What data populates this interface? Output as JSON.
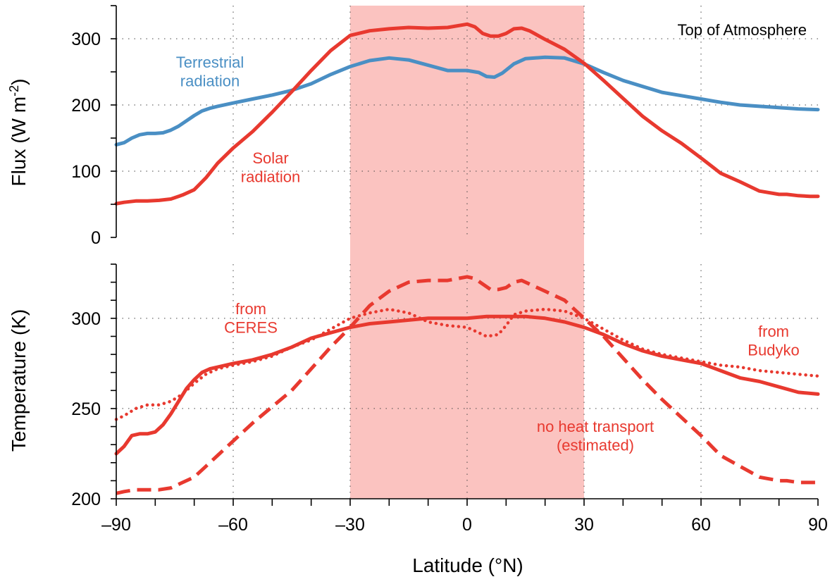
{
  "chart_data": [
    {
      "type": "line",
      "panel": "top",
      "annotation": "Top of Atmosphere",
      "ylabel_main": "Flux (W m",
      "ylabel_sup": "-2",
      "ylabel_close": ")",
      "xlim": [
        -90,
        90
      ],
      "ylim": [
        0,
        350
      ],
      "yticks": [
        0,
        100,
        200,
        300
      ],
      "grid": true,
      "shaded_band": [
        -30,
        30
      ],
      "colors": {
        "terrestrial": "#4a8fc4",
        "solar": "#e8392f",
        "band": "#fbc3c0"
      },
      "series": [
        {
          "name": "Terrestrial radiation",
          "key": "terrestrial",
          "label_lines": [
            "Terrestrial",
            "radiation"
          ],
          "x": [
            -90,
            -88,
            -86,
            -84,
            -82,
            -80,
            -78,
            -76,
            -74,
            -72,
            -70,
            -68,
            -66,
            -64,
            -60,
            -55,
            -50,
            -45,
            -40,
            -35,
            -30,
            -25,
            -20,
            -15,
            -10,
            -5,
            0,
            3,
            5,
            7,
            9,
            12,
            15,
            20,
            25,
            30,
            35,
            40,
            45,
            50,
            55,
            60,
            65,
            70,
            75,
            80,
            85,
            90
          ],
          "y": [
            140,
            143,
            150,
            155,
            157,
            157,
            158,
            162,
            168,
            176,
            184,
            191,
            195,
            198,
            203,
            209,
            215,
            222,
            232,
            246,
            258,
            267,
            271,
            268,
            260,
            252,
            252,
            249,
            243,
            242,
            248,
            262,
            270,
            272,
            271,
            262,
            249,
            237,
            228,
            219,
            214,
            209,
            204,
            200,
            198,
            196,
            194,
            193
          ]
        },
        {
          "name": "Solar radiation",
          "key": "solar",
          "label_lines": [
            "Solar",
            "radiation"
          ],
          "x": [
            -90,
            -88,
            -85,
            -82,
            -79,
            -76,
            -73,
            -70,
            -67,
            -64,
            -60,
            -55,
            -50,
            -45,
            -40,
            -35,
            -30,
            -25,
            -20,
            -15,
            -10,
            -5,
            0,
            2,
            4,
            6,
            8,
            10,
            12,
            14,
            16,
            20,
            25,
            30,
            35,
            40,
            45,
            50,
            55,
            60,
            65,
            70,
            75,
            80,
            82,
            85,
            88,
            90
          ],
          "y": [
            51,
            53,
            55,
            55,
            56,
            58,
            64,
            72,
            90,
            112,
            135,
            160,
            189,
            220,
            252,
            282,
            305,
            312,
            315,
            317,
            316,
            317,
            322,
            318,
            308,
            304,
            304,
            308,
            315,
            316,
            312,
            299,
            284,
            263,
            237,
            210,
            183,
            161,
            142,
            120,
            97,
            84,
            70,
            65,
            65,
            63,
            62,
            62
          ]
        }
      ]
    },
    {
      "type": "line",
      "panel": "bottom",
      "ylabel": "Temperature (K)",
      "xlabel": "Latitude (°N)",
      "xlim": [
        -90,
        90
      ],
      "ylim": [
        200,
        330
      ],
      "yticks": [
        200,
        250,
        300
      ],
      "xticks": [
        -90,
        -60,
        -30,
        0,
        30,
        60,
        90
      ],
      "xtick_labels": [
        "–90",
        "–60",
        "–30",
        "0",
        "30",
        "60",
        "90"
      ],
      "grid": true,
      "shaded_band": [
        -30,
        30
      ],
      "colors": {
        "ceres": "#e8392f",
        "budyko": "#e8392f",
        "noheat": "#e8392f",
        "band": "#fbc3c0"
      },
      "series": [
        {
          "name": "from CERES",
          "key": "ceres",
          "style": "solid",
          "label_lines": [
            "from",
            "CERES"
          ],
          "x": [
            -90,
            -88,
            -86,
            -84,
            -82,
            -80,
            -78,
            -76,
            -74,
            -72,
            -70,
            -68,
            -66,
            -64,
            -60,
            -55,
            -50,
            -45,
            -40,
            -35,
            -30,
            -25,
            -20,
            -15,
            -10,
            -5,
            0,
            5,
            10,
            15,
            20,
            25,
            30,
            35,
            40,
            45,
            50,
            55,
            60,
            65,
            70,
            75,
            80,
            85,
            90
          ],
          "y": [
            225,
            229,
            235,
            236,
            236,
            237,
            241,
            247,
            254,
            261,
            266,
            270,
            272,
            273,
            275,
            277,
            280,
            284,
            289,
            292,
            295,
            297,
            298,
            299,
            300,
            300,
            300,
            301,
            301,
            301,
            300,
            298,
            295,
            291,
            286,
            282,
            279,
            277,
            275,
            271,
            267,
            265,
            262,
            259,
            258
          ]
        },
        {
          "name": "from Budyko",
          "key": "budyko",
          "style": "dotted",
          "label_lines": [
            "from",
            "Budyko"
          ],
          "x": [
            -90,
            -88,
            -85,
            -82,
            -79,
            -76,
            -73,
            -70,
            -67,
            -64,
            -60,
            -55,
            -50,
            -45,
            -40,
            -35,
            -30,
            -25,
            -20,
            -15,
            -10,
            -5,
            0,
            5,
            8,
            10,
            12,
            15,
            20,
            25,
            30,
            35,
            40,
            45,
            50,
            55,
            60,
            65,
            70,
            75,
            80,
            85,
            90
          ],
          "y": [
            244,
            246,
            250,
            252,
            252,
            254,
            258,
            264,
            269,
            272,
            274,
            276,
            279,
            284,
            288,
            294,
            300,
            303,
            305,
            303,
            298,
            296,
            295,
            290,
            291,
            296,
            302,
            304,
            305,
            304,
            300,
            294,
            288,
            283,
            280,
            278,
            276,
            274,
            273,
            271,
            270,
            269,
            268
          ]
        },
        {
          "name": "no heat transport (estimated)",
          "key": "noheat",
          "style": "dashed",
          "label_lines": [
            "no heat transport",
            "(estimated)"
          ],
          "x": [
            -90,
            -88,
            -85,
            -82,
            -79,
            -76,
            -73,
            -70,
            -67,
            -64,
            -60,
            -55,
            -50,
            -45,
            -40,
            -35,
            -30,
            -25,
            -20,
            -15,
            -10,
            -5,
            0,
            2,
            4,
            6,
            8,
            10,
            12,
            14,
            16,
            20,
            25,
            30,
            35,
            40,
            45,
            50,
            55,
            60,
            65,
            70,
            75,
            80,
            82,
            85,
            88,
            90
          ],
          "y": [
            203,
            204,
            205,
            205,
            205,
            206,
            209,
            212,
            218,
            224,
            232,
            242,
            251,
            260,
            272,
            284,
            295,
            307,
            315,
            320,
            321,
            321,
            323,
            322,
            319,
            316,
            316,
            317,
            320,
            321,
            319,
            315,
            310,
            300,
            290,
            278,
            266,
            255,
            245,
            235,
            224,
            218,
            212,
            210,
            210,
            209,
            209,
            209
          ]
        }
      ]
    }
  ]
}
